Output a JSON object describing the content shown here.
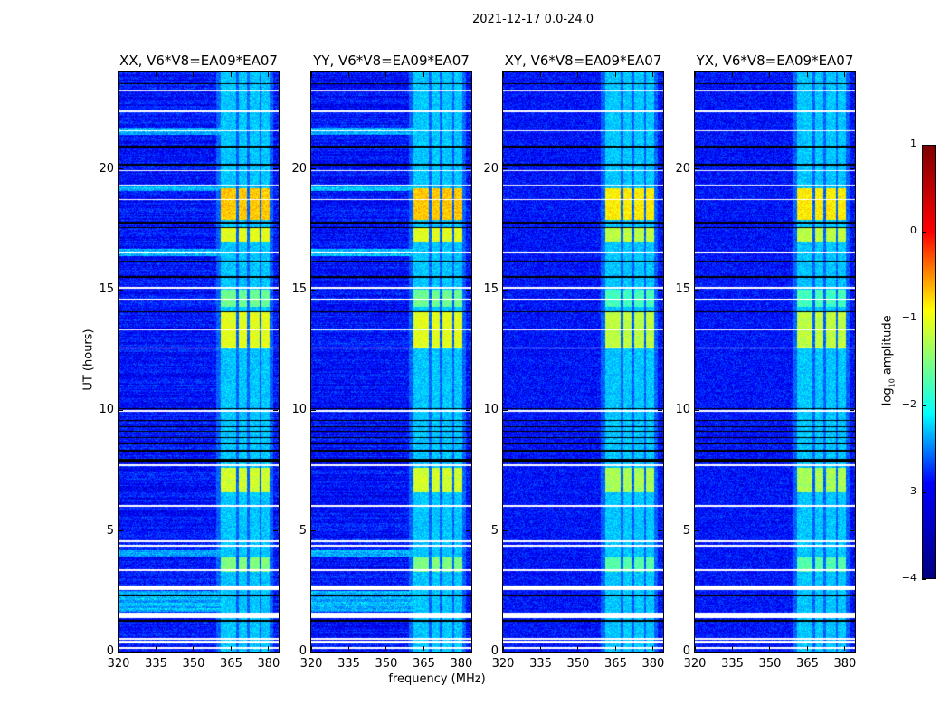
{
  "chart_data": {
    "type": "heatmap",
    "title": "2021-12-17 0.0-24.0",
    "xlabel": "frequency (MHz)",
    "ylabel": "UT (hours)",
    "xlim": [
      320,
      384
    ],
    "ylim": [
      0,
      24
    ],
    "xticks": [
      320,
      335,
      350,
      365,
      380
    ],
    "yticks": [
      0,
      5,
      10,
      15,
      20
    ],
    "panels": [
      {
        "title": "XX, V6*V8=EA09*EA07",
        "pol": "XX"
      },
      {
        "title": "YY, V6*V8=EA09*EA07",
        "pol": "YY"
      },
      {
        "title": "XY, V6*V8=EA09*EA07",
        "pol": "XY"
      },
      {
        "title": "YX, V6*V8=EA09*EA07",
        "pol": "YX"
      }
    ],
    "colorbar": {
      "label_prefix": "log",
      "label_sub": "10",
      "label_suffix": " amplitude",
      "range": [
        -4,
        1
      ],
      "ticks": [
        1,
        0,
        -1,
        -2,
        -3,
        -4
      ],
      "colormap": "jet"
    },
    "background_log_amplitude": -3.3,
    "rfi_subbands_mhz": [
      [
        361,
        367
      ],
      [
        368,
        371.5
      ],
      [
        372.5,
        376.5
      ],
      [
        377,
        380.5
      ]
    ],
    "rfi_level_log_amplitude": -2.4,
    "bright_intervals_hr": [
      {
        "range": [
          3.3,
          3.9
        ],
        "level": -1.5
      },
      {
        "range": [
          6.6,
          7.6
        ],
        "level": -1.1
      },
      {
        "range": [
          12.6,
          14.1
        ],
        "level": -1.0
      },
      {
        "range": [
          14.3,
          15.0
        ],
        "level": -1.6
      },
      {
        "range": [
          17.0,
          17.6
        ],
        "level": -1.0
      },
      {
        "range": [
          17.9,
          19.2
        ],
        "level": -0.6
      }
    ],
    "flagged_hr": [
      [
        0.12,
        0.2
      ],
      [
        0.35,
        0.45
      ],
      [
        0.5,
        0.56
      ],
      [
        1.4,
        1.62
      ],
      [
        2.55,
        2.75
      ],
      [
        3.35,
        3.41
      ],
      [
        4.35,
        4.41
      ],
      [
        4.55,
        4.61
      ],
      [
        6.0,
        6.06
      ],
      [
        7.7,
        7.76
      ],
      [
        9.95,
        10.0
      ],
      [
        12.55,
        12.61
      ],
      [
        13.3,
        13.36
      ],
      [
        14.55,
        14.61
      ],
      [
        15.05,
        15.11
      ],
      [
        16.5,
        16.56
      ],
      [
        18.7,
        18.76
      ],
      [
        19.3,
        19.36
      ],
      [
        19.9,
        19.96
      ],
      [
        21.55,
        21.61
      ],
      [
        22.35,
        22.41
      ],
      [
        23.2,
        23.26
      ]
    ],
    "gap_lines_hr": [
      [
        1.25,
        1.3
      ],
      [
        2.3,
        2.35
      ],
      [
        7.85,
        8.0
      ],
      [
        8.3,
        8.35
      ],
      [
        8.6,
        8.65
      ],
      [
        8.85,
        8.9
      ],
      [
        9.1,
        9.15
      ],
      [
        9.3,
        9.35
      ],
      [
        9.55,
        9.6
      ],
      [
        10.05,
        10.1
      ],
      [
        14.05,
        14.1
      ],
      [
        15.5,
        15.55
      ],
      [
        16.15,
        16.2
      ],
      [
        17.55,
        17.6
      ],
      [
        17.75,
        17.8
      ],
      [
        20.15,
        20.2
      ],
      [
        20.9,
        20.95
      ],
      [
        23.5,
        23.56
      ]
    ],
    "broadband_rfi_hr": [
      [
        1.65,
        2.5
      ],
      [
        3.95,
        4.2
      ],
      [
        16.4,
        16.7
      ],
      [
        19.1,
        19.3
      ],
      [
        21.4,
        21.7
      ]
    ]
  }
}
